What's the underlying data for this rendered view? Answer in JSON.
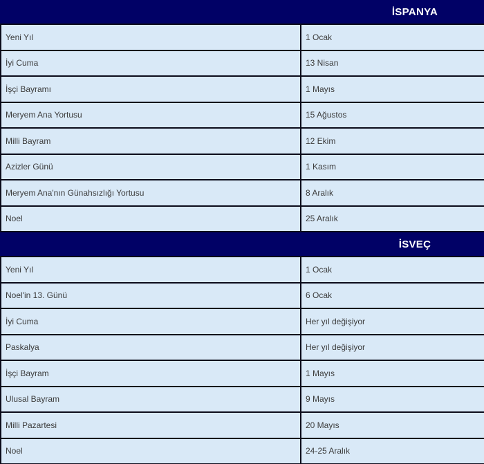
{
  "page": {
    "background": "#ffffff",
    "header_bg": "#010166",
    "header_text_color": "#ffffff",
    "row_bg": "#d9e9f7",
    "border_color": "#0b0b1a",
    "row_text_color": "#3c3c3c"
  },
  "table": {
    "columns": [
      "holiday",
      "date"
    ],
    "sections": [
      {
        "title": "İSPANYA",
        "rows": [
          {
            "holiday": "Yeni Yıl",
            "date": "1 Ocak"
          },
          {
            "holiday": "İyi Cuma",
            "date": "13 Nisan"
          },
          {
            "holiday": "İşçi Bayramı",
            "date": "1 Mayıs"
          },
          {
            "holiday": "Meryem Ana Yortusu",
            "date": "15 Ağustos"
          },
          {
            "holiday": "Milli Bayram",
            "date": "12 Ekim"
          },
          {
            "holiday": "Azizler Günü",
            "date": "1 Kasım"
          },
          {
            "holiday": "Meryem Ana'nın Günahsızlığı Yortusu",
            "date": "8 Aralık"
          },
          {
            "holiday": "Noel",
            "date": "25 Aralık"
          }
        ]
      },
      {
        "title": "İSVEÇ",
        "rows": [
          {
            "holiday": "Yeni Yıl",
            "date": "1 Ocak"
          },
          {
            "holiday": "Noel'in 13. Günü",
            "date": "6 Ocak"
          },
          {
            "holiday": "İyi Cuma",
            "date": "Her yıl değişiyor"
          },
          {
            "holiday": "Paskalya",
            "date": "Her yıl değişiyor"
          },
          {
            "holiday": "İşçi Bayram",
            "date": "1 Mayıs"
          },
          {
            "holiday": "Ulusal Bayram",
            "date": "9 Mayıs"
          },
          {
            "holiday": "Milli Pazartesi",
            "date": "20 Mayıs"
          },
          {
            "holiday": "Noel",
            "date": "24-25 Aralık"
          }
        ]
      }
    ]
  }
}
